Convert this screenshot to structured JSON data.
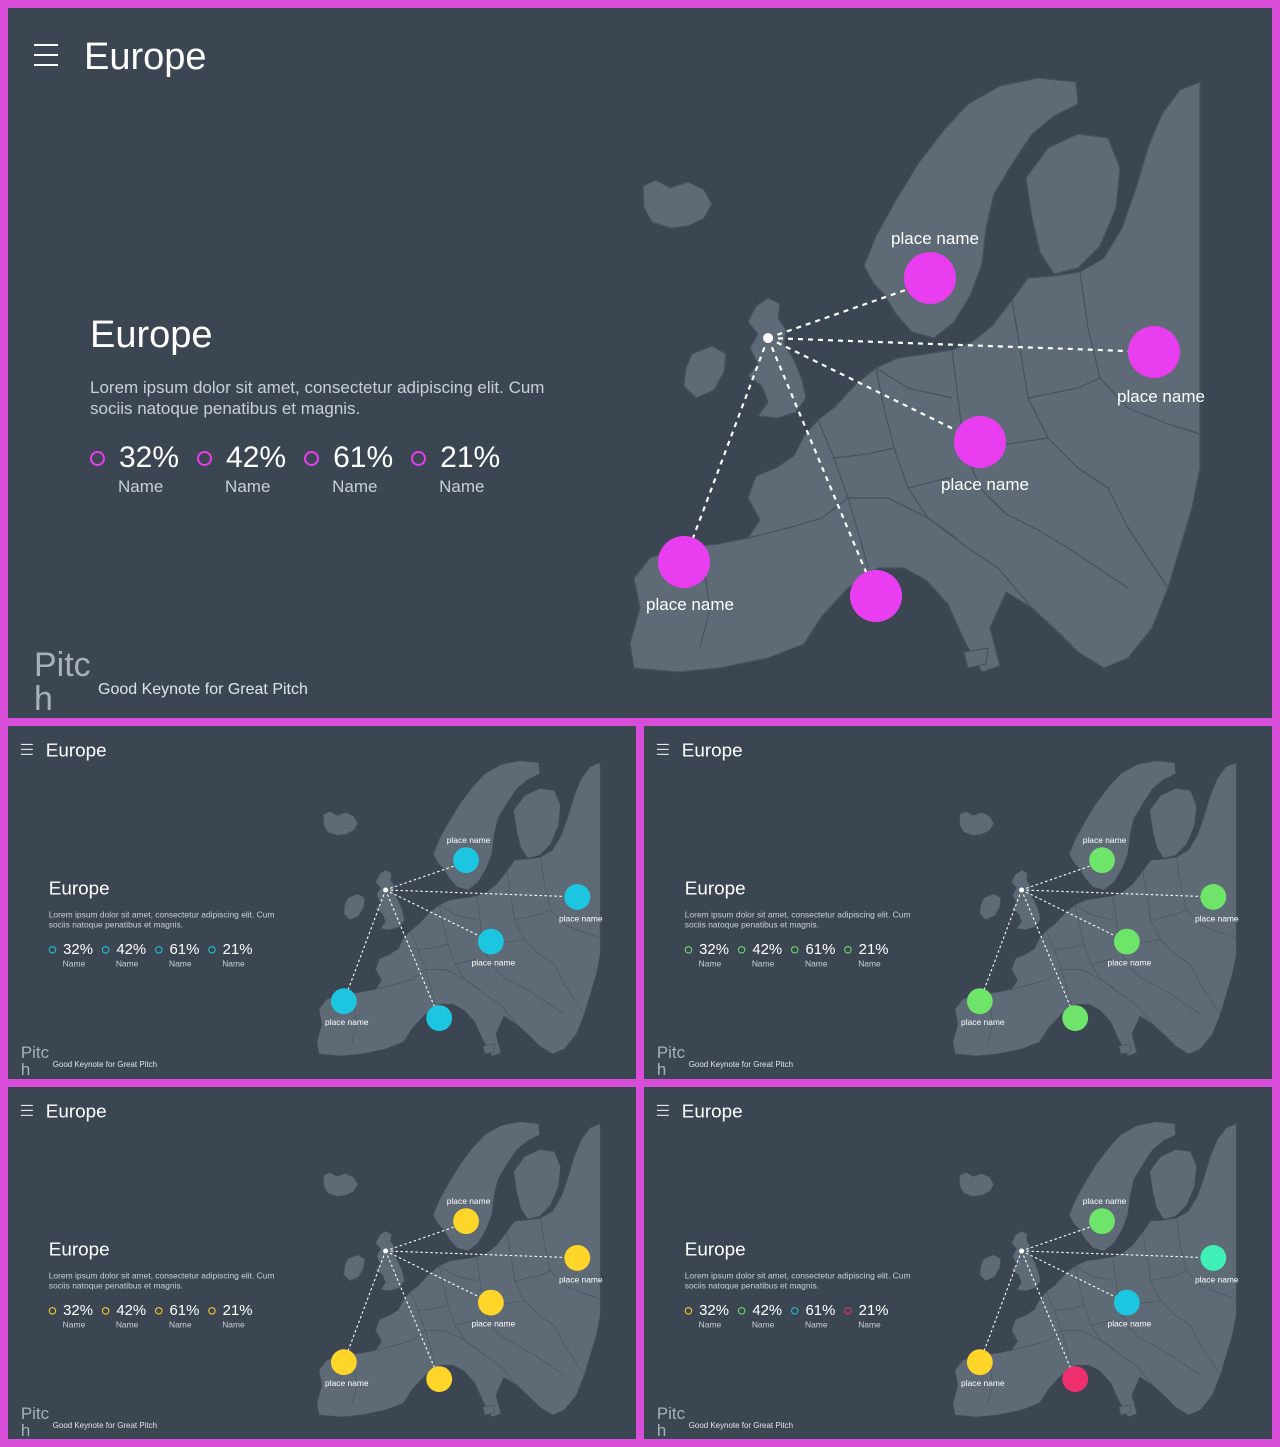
{
  "header": {
    "title": "Europe"
  },
  "content": {
    "title": "Europe",
    "description": "Lorem ipsum dolor sit amet, consectetur adipiscing elit. Cum sociis natoque penatibus et magnis."
  },
  "stats": [
    {
      "value": "32%",
      "name": "Name"
    },
    {
      "value": "42%",
      "name": "Name"
    },
    {
      "value": "61%",
      "name": "Name"
    },
    {
      "value": "21%",
      "name": "Name"
    }
  ],
  "markers": [
    {
      "label": "place name"
    },
    {
      "label": "place name"
    },
    {
      "label": "place name"
    },
    {
      "label": "place name"
    },
    {
      "label": ""
    }
  ],
  "footer": {
    "brand": "Pitch",
    "tagline": "Good Keynote for Great Pitch"
  },
  "colors": {
    "background": "#3c4652",
    "land": "#5e6a76",
    "frame": "#d94ed9",
    "magenta": "#e83ef0",
    "cyan": "#1cc6e0",
    "green": "#6ee46a",
    "yellow": "#ffd52a",
    "teal": "#3ef0b8",
    "pink": "#f0306e"
  },
  "variants": [
    {
      "slide": "main",
      "markers": [
        "magenta",
        "magenta",
        "magenta",
        "magenta",
        "magenta"
      ],
      "stats": [
        "magenta",
        "magenta",
        "magenta",
        "magenta"
      ]
    },
    {
      "slide": "cyan",
      "markers": [
        "cyan",
        "cyan",
        "cyan",
        "cyan",
        "cyan"
      ],
      "stats": [
        "cyan",
        "cyan",
        "cyan",
        "cyan"
      ]
    },
    {
      "slide": "green",
      "markers": [
        "green",
        "green",
        "green",
        "green",
        "green"
      ],
      "stats": [
        "green",
        "green",
        "green",
        "green"
      ]
    },
    {
      "slide": "yellow",
      "markers": [
        "yellow",
        "yellow",
        "yellow",
        "yellow",
        "yellow"
      ],
      "stats": [
        "yellow",
        "yellow",
        "yellow",
        "yellow"
      ]
    },
    {
      "slide": "mixed",
      "markers": [
        "green",
        "teal",
        "cyan",
        "yellow",
        "pink"
      ],
      "stats": [
        "yellow",
        "green",
        "cyan",
        "pink"
      ]
    }
  ]
}
